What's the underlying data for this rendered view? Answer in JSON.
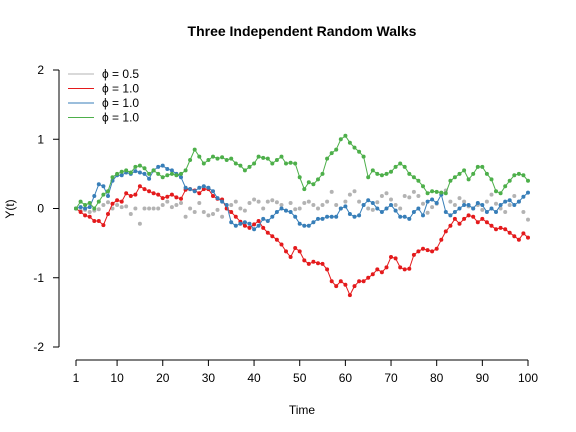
{
  "chart_data": {
    "type": "line",
    "title": "Three Independent Random Walks",
    "xlabel": "Time",
    "ylabel": "Y(t)",
    "xlim": [
      1,
      100
    ],
    "ylim": [
      -2,
      2
    ],
    "xticks": [
      1,
      10,
      20,
      30,
      40,
      50,
      60,
      70,
      80,
      90,
      100
    ],
    "xtick_labels": [
      "1",
      "10",
      "20",
      "30",
      "40",
      "50",
      "60",
      "70",
      "80",
      "90",
      "100"
    ],
    "yticks": [
      -2,
      -1,
      0,
      1,
      2
    ],
    "ytick_labels": [
      "-2",
      "-1",
      "0",
      "1",
      "2"
    ],
    "grid": false,
    "legend_position": "top-left",
    "series": [
      {
        "name": "ϕ = 0.5",
        "color": "#b3b3b3",
        "style": "points",
        "values": [
          0.0,
          -0.03,
          -0.02,
          -0.05,
          -0.03,
          -0.01,
          0.05,
          0.09,
          0.0,
          0.05,
          0.02,
          0.03,
          -0.08,
          0.0,
          -0.22,
          0.0,
          0.0,
          0.0,
          0.0,
          0.05,
          0.1,
          0.02,
          0.05,
          0.08,
          -0.12,
          0.0,
          -0.05,
          0.08,
          -0.05,
          -0.1,
          -0.08,
          -0.02,
          -0.12,
          0.0,
          0.05,
          0.1,
          0.0,
          -0.03,
          0.08,
          0.13,
          0.1,
          0.0,
          0.1,
          0.12,
          0.09,
          0.05,
          -0.03,
          0.08,
          -0.01,
          0.0,
          0.08,
          0.1,
          0.05,
          0.0,
          0.05,
          0.1,
          0.24,
          0.05,
          0.0,
          0.1,
          0.2,
          0.25,
          0.1,
          0.05,
          0.0,
          -0.02,
          0.09,
          0.18,
          0.22,
          0.13,
          0.05,
          0.0,
          0.18,
          0.16,
          0.24,
          0.18,
          0.07,
          -0.06,
          0.02,
          0.07,
          0.22,
          0.26,
          0.1,
          0.05,
          0.15,
          0.1,
          0.03,
          0.0,
          0.05,
          -0.02,
          0.1,
          0.2,
          0.07,
          0.0,
          -0.05,
          0.05,
          0.18,
          0.1,
          -0.05,
          -0.16
        ]
      },
      {
        "name": "ϕ = 1.0",
        "color": "#e41a1c",
        "style": "line-points",
        "values": [
          0.0,
          -0.05,
          -0.1,
          -0.12,
          -0.18,
          -0.18,
          -0.24,
          -0.08,
          0.07,
          0.12,
          0.1,
          0.22,
          0.18,
          0.2,
          0.32,
          0.28,
          0.25,
          0.22,
          0.2,
          0.15,
          0.17,
          0.2,
          0.16,
          0.14,
          0.27,
          0.28,
          0.26,
          0.22,
          0.28,
          0.28,
          0.18,
          0.14,
          0.13,
          0.0,
          -0.05,
          -0.12,
          -0.19,
          -0.25,
          -0.28,
          -0.23,
          -0.18,
          -0.28,
          -0.35,
          -0.4,
          -0.45,
          -0.52,
          -0.62,
          -0.7,
          -0.57,
          -0.62,
          -0.75,
          -0.8,
          -0.77,
          -0.79,
          -0.8,
          -0.88,
          -1.05,
          -1.12,
          -1.05,
          -1.1,
          -1.25,
          -1.12,
          -1.05,
          -1.05,
          -1.0,
          -0.95,
          -0.88,
          -0.92,
          -0.85,
          -0.7,
          -0.72,
          -0.85,
          -0.88,
          -0.87,
          -0.67,
          -0.62,
          -0.58,
          -0.6,
          -0.62,
          -0.58,
          -0.45,
          -0.33,
          -0.25,
          -0.15,
          -0.22,
          -0.15,
          -0.1,
          -0.12,
          -0.2,
          -0.15,
          -0.2,
          -0.25,
          -0.3,
          -0.28,
          -0.3,
          -0.35,
          -0.4,
          -0.45,
          -0.36,
          -0.42
        ]
      },
      {
        "name": "ϕ = 1.0",
        "color": "#377eb8",
        "style": "line-points",
        "values": [
          0.0,
          0.02,
          0.0,
          0.02,
          0.18,
          0.35,
          0.32,
          0.18,
          0.4,
          0.48,
          0.48,
          0.52,
          0.5,
          0.54,
          0.52,
          0.5,
          0.43,
          0.55,
          0.6,
          0.62,
          0.57,
          0.55,
          0.5,
          0.45,
          0.3,
          0.28,
          0.25,
          0.3,
          0.32,
          0.3,
          0.25,
          0.15,
          0.1,
          0.05,
          -0.2,
          -0.25,
          -0.22,
          -0.2,
          -0.22,
          -0.3,
          -0.25,
          -0.15,
          -0.18,
          -0.12,
          -0.05,
          0.0,
          -0.03,
          -0.05,
          -0.12,
          -0.22,
          -0.25,
          -0.25,
          -0.2,
          -0.15,
          -0.15,
          -0.12,
          -0.12,
          -0.12,
          0.0,
          0.03,
          -0.08,
          -0.12,
          -0.1,
          0.05,
          0.12,
          0.08,
          0.0,
          -0.05,
          0.0,
          0.05,
          -0.03,
          -0.12,
          -0.12,
          -0.15,
          -0.05,
          0.0,
          -0.1,
          0.1,
          0.13,
          0.08,
          0.2,
          -0.05,
          -0.1,
          -0.05,
          0.0,
          0.05,
          0.05,
          0.0,
          0.08,
          0.05,
          -0.05,
          0.0,
          -0.05,
          0.05,
          0.1,
          0.12,
          0.05,
          0.1,
          0.17,
          0.23
        ]
      },
      {
        "name": "ϕ = 1.0",
        "color": "#4daf4a",
        "style": "line-points",
        "values": [
          0.0,
          0.1,
          0.05,
          0.08,
          0.0,
          0.1,
          0.2,
          0.25,
          0.45,
          0.5,
          0.53,
          0.55,
          0.52,
          0.6,
          0.62,
          0.58,
          0.5,
          0.55,
          0.5,
          0.45,
          0.48,
          0.5,
          0.48,
          0.5,
          0.55,
          0.7,
          0.85,
          0.75,
          0.65,
          0.7,
          0.75,
          0.72,
          0.74,
          0.7,
          0.72,
          0.65,
          0.62,
          0.55,
          0.6,
          0.65,
          0.75,
          0.73,
          0.72,
          0.65,
          0.7,
          0.75,
          0.65,
          0.66,
          0.65,
          0.45,
          0.28,
          0.38,
          0.35,
          0.42,
          0.5,
          0.72,
          0.8,
          0.85,
          1.0,
          1.05,
          0.95,
          0.88,
          0.82,
          0.75,
          0.45,
          0.55,
          0.5,
          0.48,
          0.5,
          0.53,
          0.6,
          0.65,
          0.6,
          0.5,
          0.45,
          0.4,
          0.32,
          0.22,
          0.25,
          0.24,
          0.23,
          0.22,
          0.4,
          0.45,
          0.5,
          0.55,
          0.42,
          0.5,
          0.6,
          0.6,
          0.5,
          0.42,
          0.25,
          0.22,
          0.32,
          0.4,
          0.48,
          0.5,
          0.48,
          0.4
        ]
      }
    ]
  }
}
